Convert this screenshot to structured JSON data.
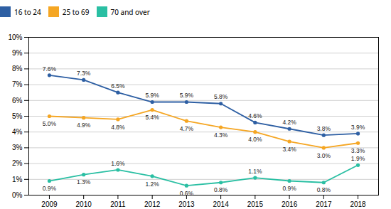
{
  "chart_data": {
    "type": "line",
    "x": [
      2009,
      2010,
      2011,
      2012,
      2013,
      2014,
      2015,
      2016,
      2017,
      2018
    ],
    "series": [
      {
        "name": "16 to 24",
        "color": "#2E5FA3",
        "values": [
          7.6,
          7.3,
          6.5,
          5.9,
          5.9,
          5.8,
          4.6,
          4.2,
          3.8,
          3.9
        ],
        "value_labels": [
          "7.6%",
          "7.3%",
          "6.5%",
          "5.9%",
          "5.9%",
          "5.8%",
          "4.6%",
          "4.2%",
          "3.8%",
          "3.9%"
        ]
      },
      {
        "name": "25 to 69",
        "color": "#F5A623",
        "values": [
          5.0,
          4.9,
          4.8,
          5.4,
          4.7,
          4.3,
          4.0,
          3.4,
          3.0,
          3.3
        ],
        "value_labels": [
          "5.0%",
          "4.9%",
          "4.8%",
          "5.4%",
          "4.7%",
          "4.3%",
          "4.0%",
          "3.4%",
          "3.0%",
          "3.3%"
        ]
      },
      {
        "name": "70 and over",
        "color": "#2ABFA3",
        "values": [
          0.9,
          1.3,
          1.6,
          1.2,
          0.6,
          0.8,
          1.1,
          0.9,
          0.8,
          1.9
        ],
        "value_labels": [
          "0.9%",
          "1.3%",
          "1.6%",
          "1.2%",
          "0.6%",
          "0.8%",
          "1.1%",
          "0.9%",
          "0.8%",
          "1.9%"
        ]
      }
    ],
    "xlim": [
      2008.4,
      2018.6
    ],
    "xticks": [
      2009,
      2010,
      2011,
      2012,
      2013,
      2014,
      2015,
      2016,
      2017,
      2018
    ],
    "ylim": [
      0,
      10
    ],
    "yticks": [
      {
        "value": 0,
        "label": "0%"
      },
      {
        "value": 1,
        "label": "1%"
      },
      {
        "value": 2,
        "label": "2%"
      },
      {
        "value": 3,
        "label": "3%"
      },
      {
        "value": 4,
        "label": "4%"
      },
      {
        "value": 5,
        "label": "5%"
      },
      {
        "value": 6,
        "label": "6%"
      },
      {
        "value": 7,
        "label": "7%"
      },
      {
        "value": 8,
        "label": "8%"
      },
      {
        "value": 9,
        "label": "9%"
      },
      {
        "value": 10,
        "label": "10%"
      }
    ],
    "grid": true,
    "legend": "top",
    "data_labels": true,
    "marker": "circle"
  }
}
